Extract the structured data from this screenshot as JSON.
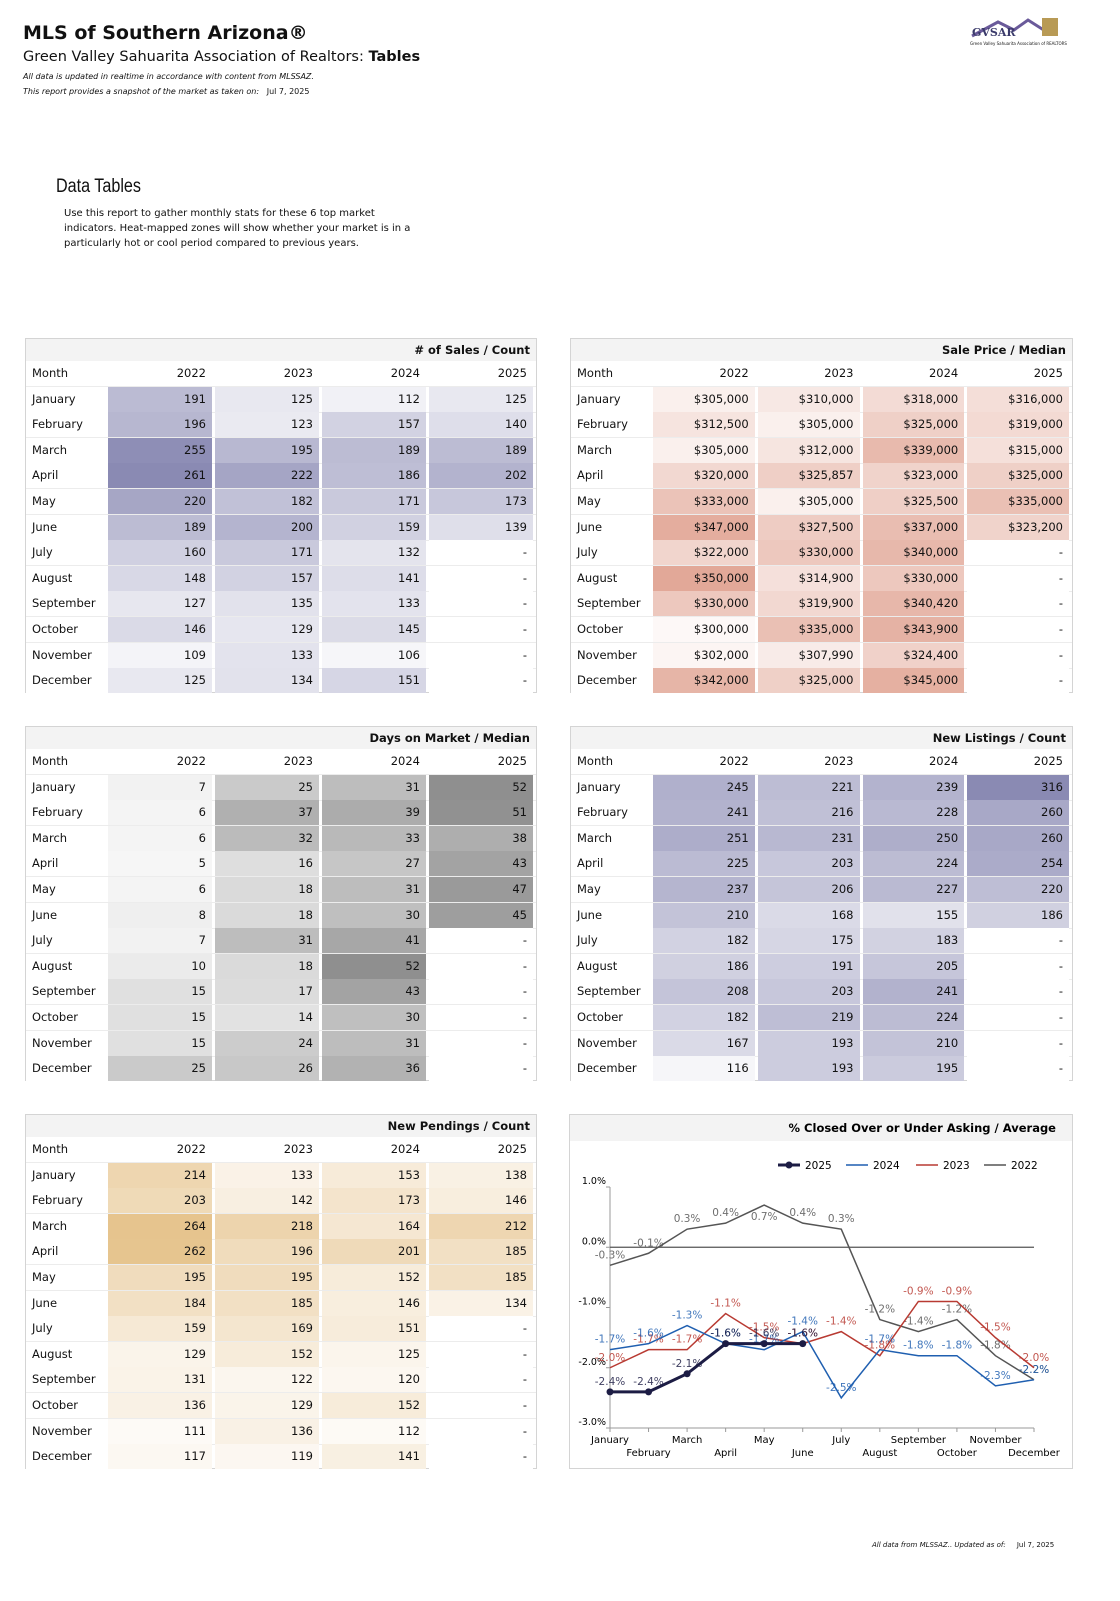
{
  "header": {
    "title": "MLS of Southern Arizona®",
    "subtitle": "Green Valley Sahuarita Association of Realtors: ",
    "subtitle_bold": "Tables",
    "note": "All data is updated in realtime in accordance with content from MLSSAZ.",
    "snapshot_label": "This report provides a snapshot of the market as taken on:",
    "snapshot_date": "Jul 7, 2025",
    "logo": "GVSAR",
    "logo_sub": "Green Valley Sahuarita Association of REALTORS"
  },
  "intro": {
    "title": "Data Tables",
    "text": "Use this report to gather monthly stats for these 6 top market indicators.  Heat-mapped zones will show whether your market is in a particularly hot or cool period compared to previous years."
  },
  "tables": [
    {
      "title": "# of Sales / Count",
      "heat_color": "#8a8ab3",
      "columns": [
        "Month",
        "2022",
        "2023",
        "2024",
        "2025"
      ],
      "rows": [
        [
          "January",
          "191",
          "125",
          "112",
          "125"
        ],
        [
          "February",
          "196",
          "123",
          "157",
          "140"
        ],
        [
          "March",
          "255",
          "195",
          "189",
          "189"
        ],
        [
          "April",
          "261",
          "222",
          "186",
          "202"
        ],
        [
          "May",
          "220",
          "182",
          "171",
          "173"
        ],
        [
          "June",
          "189",
          "200",
          "159",
          "139"
        ],
        [
          "July",
          "160",
          "171",
          "132",
          "-"
        ],
        [
          "August",
          "148",
          "157",
          "141",
          "-"
        ],
        [
          "September",
          "127",
          "135",
          "133",
          "-"
        ],
        [
          "October",
          "146",
          "129",
          "145",
          "-"
        ],
        [
          "November",
          "109",
          "133",
          "106",
          "-"
        ],
        [
          "December",
          "125",
          "134",
          "151",
          "-"
        ]
      ]
    },
    {
      "title": "Sale Price / Median",
      "heat_color": "#e2a898",
      "columns": [
        "Month",
        "2022",
        "2023",
        "2024",
        "2025"
      ],
      "rows": [
        [
          "January",
          "$305,000",
          "$310,000",
          "$318,000",
          "$316,000"
        ],
        [
          "February",
          "$312,500",
          "$305,000",
          "$325,000",
          "$319,000"
        ],
        [
          "March",
          "$305,000",
          "$312,000",
          "$339,000",
          "$315,000"
        ],
        [
          "April",
          "$320,000",
          "$325,857",
          "$323,000",
          "$325,000"
        ],
        [
          "May",
          "$333,000",
          "$305,000",
          "$325,500",
          "$335,000"
        ],
        [
          "June",
          "$347,000",
          "$327,500",
          "$337,000",
          "$323,200"
        ],
        [
          "July",
          "$322,000",
          "$330,000",
          "$340,000",
          "-"
        ],
        [
          "August",
          "$350,000",
          "$314,900",
          "$330,000",
          "-"
        ],
        [
          "September",
          "$330,000",
          "$319,900",
          "$340,420",
          "-"
        ],
        [
          "October",
          "$300,000",
          "$335,000",
          "$343,900",
          "-"
        ],
        [
          "November",
          "$302,000",
          "$307,990",
          "$324,400",
          "-"
        ],
        [
          "December",
          "$342,000",
          "$325,000",
          "$345,000",
          "-"
        ]
      ]
    },
    {
      "title": "Days on Market / Median",
      "heat_color": "#8f8f8f",
      "columns": [
        "Month",
        "2022",
        "2023",
        "2024",
        "2025"
      ],
      "rows": [
        [
          "January",
          "7",
          "25",
          "31",
          "52"
        ],
        [
          "February",
          "6",
          "37",
          "39",
          "51"
        ],
        [
          "March",
          "6",
          "32",
          "33",
          "38"
        ],
        [
          "April",
          "5",
          "16",
          "27",
          "43"
        ],
        [
          "May",
          "6",
          "18",
          "31",
          "47"
        ],
        [
          "June",
          "8",
          "18",
          "30",
          "45"
        ],
        [
          "July",
          "7",
          "31",
          "41",
          "-"
        ],
        [
          "August",
          "10",
          "18",
          "52",
          "-"
        ],
        [
          "September",
          "15",
          "17",
          "43",
          "-"
        ],
        [
          "October",
          "15",
          "14",
          "30",
          "-"
        ],
        [
          "November",
          "15",
          "24",
          "31",
          "-"
        ],
        [
          "December",
          "25",
          "26",
          "36",
          "-"
        ]
      ]
    },
    {
      "title": "New Listings / Count",
      "heat_color": "#8a8ab3",
      "columns": [
        "Month",
        "2022",
        "2023",
        "2024",
        "2025"
      ],
      "rows": [
        [
          "January",
          "245",
          "221",
          "239",
          "316"
        ],
        [
          "February",
          "241",
          "216",
          "228",
          "260"
        ],
        [
          "March",
          "251",
          "231",
          "250",
          "260"
        ],
        [
          "April",
          "225",
          "203",
          "224",
          "254"
        ],
        [
          "May",
          "237",
          "206",
          "227",
          "220"
        ],
        [
          "June",
          "210",
          "168",
          "155",
          "186"
        ],
        [
          "July",
          "182",
          "175",
          "183",
          "-"
        ],
        [
          "August",
          "186",
          "191",
          "205",
          "-"
        ],
        [
          "September",
          "208",
          "203",
          "241",
          "-"
        ],
        [
          "October",
          "182",
          "219",
          "224",
          "-"
        ],
        [
          "November",
          "167",
          "193",
          "210",
          "-"
        ],
        [
          "December",
          "116",
          "193",
          "195",
          "-"
        ]
      ]
    },
    {
      "title": "New Pendings / Count",
      "heat_color": "#e6c48e",
      "columns": [
        "Month",
        "2022",
        "2023",
        "2024",
        "2025"
      ],
      "rows": [
        [
          "January",
          "214",
          "133",
          "153",
          "138"
        ],
        [
          "February",
          "203",
          "142",
          "173",
          "146"
        ],
        [
          "March",
          "264",
          "218",
          "164",
          "212"
        ],
        [
          "April",
          "262",
          "196",
          "201",
          "185"
        ],
        [
          "May",
          "195",
          "195",
          "152",
          "185"
        ],
        [
          "June",
          "184",
          "185",
          "146",
          "134"
        ],
        [
          "July",
          "159",
          "169",
          "151",
          "-"
        ],
        [
          "August",
          "129",
          "152",
          "125",
          "-"
        ],
        [
          "September",
          "131",
          "122",
          "120",
          "-"
        ],
        [
          "October",
          "136",
          "129",
          "152",
          "-"
        ],
        [
          "November",
          "111",
          "136",
          "112",
          "-"
        ],
        [
          "December",
          "117",
          "119",
          "141",
          "-"
        ]
      ]
    }
  ],
  "chart_data": {
    "type": "line",
    "title": "% Closed Over or Under Asking / Average",
    "legend": "top",
    "categories": [
      "January",
      "February",
      "March",
      "April",
      "May",
      "June",
      "July",
      "August",
      "September",
      "October",
      "November",
      "December"
    ],
    "ylim": [
      -3,
      1
    ],
    "yticks": [
      {
        "value": -3,
        "label": "-3.0%"
      },
      {
        "value": -2,
        "label": "-2.0%"
      },
      {
        "value": -1,
        "label": "-1.0%"
      },
      {
        "value": 0,
        "label": "0.0%"
      },
      {
        "value": 1,
        "label": "1.0%"
      }
    ],
    "series": [
      {
        "name": "2025",
        "color": "#1c1c44",
        "values": [
          -2.4,
          -2.4,
          -2.1,
          -1.6,
          -1.6,
          -1.6,
          null,
          null,
          null,
          null,
          null,
          null
        ],
        "value_labels": [
          "-2.4%",
          "-2.4%",
          "-2.1%",
          "-1.6%",
          "-1.6%",
          "-1.6%",
          null,
          null,
          null,
          null,
          null,
          null
        ]
      },
      {
        "name": "2024",
        "color": "#1f5fb0",
        "values": [
          -1.7,
          -1.6,
          -1.3,
          -1.6,
          -1.7,
          -1.4,
          -2.5,
          -1.7,
          -1.8,
          -1.8,
          -2.3,
          -2.2
        ],
        "value_labels": [
          "-1.7%",
          "-1.6%",
          "-1.3%",
          "-1.6%",
          "-1.7%",
          "-1.4%",
          "-2.5%",
          "-1.7%",
          "-1.8%",
          "-1.8%",
          "-2.3%",
          "-2.2%"
        ]
      },
      {
        "name": "2023",
        "color": "#b83a32",
        "values": [
          -2.0,
          -1.7,
          -1.7,
          -1.1,
          -1.5,
          -1.6,
          -1.4,
          -1.8,
          -0.9,
          -0.9,
          -1.5,
          -2.0
        ],
        "value_labels": [
          "-2.0%",
          "-1.7%",
          "-1.7%",
          "-1.1%",
          "-1.5%",
          "-1.6%",
          "-1.4%",
          "-1.8%",
          "-0.9%",
          "-0.9%",
          "-1.5%",
          "-2.0%"
        ]
      },
      {
        "name": "2022",
        "color": "#555555",
        "values": [
          -0.3,
          -0.1,
          0.3,
          0.4,
          0.7,
          0.4,
          0.3,
          -1.2,
          -1.4,
          -1.2,
          -1.8,
          -2.2
        ],
        "value_labels": [
          "-0.3%",
          "-0.1%",
          "0.3%",
          "0.4%",
          "0.7%",
          "0.4%",
          "0.3%",
          "-1.2%",
          "-1.4%",
          "-1.2%",
          "-1.8%",
          "-2.2%"
        ]
      }
    ]
  },
  "footer": {
    "label": "All data from MLSSAZ.. Updated as of:",
    "date": "Jul 7, 2025"
  }
}
